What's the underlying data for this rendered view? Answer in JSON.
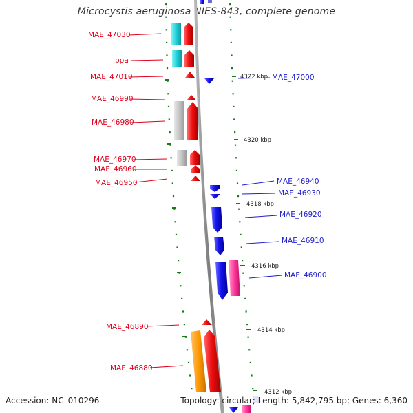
{
  "title": "Microcystis aeruginosa NIES-843, complete genome",
  "footer": {
    "accession": "Accession: NC_010296",
    "summary": "Topology: circular; Length: 5,842,795 bp; Genes: 6,360"
  },
  "colors": {
    "left_labels": "#e0001b",
    "right_labels": "#1f1fcc",
    "ticks": "#1a7a1a",
    "backbone": "#8c8c8c",
    "forward_cds": "#ee1111",
    "reverse_cds": "#1a1aee",
    "cyan_feature": "#1fd0d8",
    "grey_feature": "#bdbdbd",
    "orange_feature": "#ff9900",
    "pink_feature": "#ff3a9a"
  },
  "left_genes": [
    {
      "name": "MAE_47030"
    },
    {
      "name": "ppa"
    },
    {
      "name": "MAE_47010"
    },
    {
      "name": "MAE_46990"
    },
    {
      "name": "MAE_46980"
    },
    {
      "name": "MAE_46970"
    },
    {
      "name": "MAE_46960"
    },
    {
      "name": "MAE_46950"
    },
    {
      "name": "MAE_46890"
    },
    {
      "name": "MAE_46880"
    }
  ],
  "right_genes": [
    {
      "name": "MAE_47000"
    },
    {
      "name": "MAE_46940"
    },
    {
      "name": "MAE_46930"
    },
    {
      "name": "MAE_46920"
    },
    {
      "name": "MAE_46910"
    },
    {
      "name": "MAE_46900"
    }
  ],
  "position_ticks": [
    {
      "label": "4322 kbp"
    },
    {
      "label": "4320 kbp"
    },
    {
      "label": "4318 kbp"
    },
    {
      "label": "4316 kbp"
    },
    {
      "label": "4314 kbp"
    },
    {
      "label": "4312 kbp"
    }
  ]
}
